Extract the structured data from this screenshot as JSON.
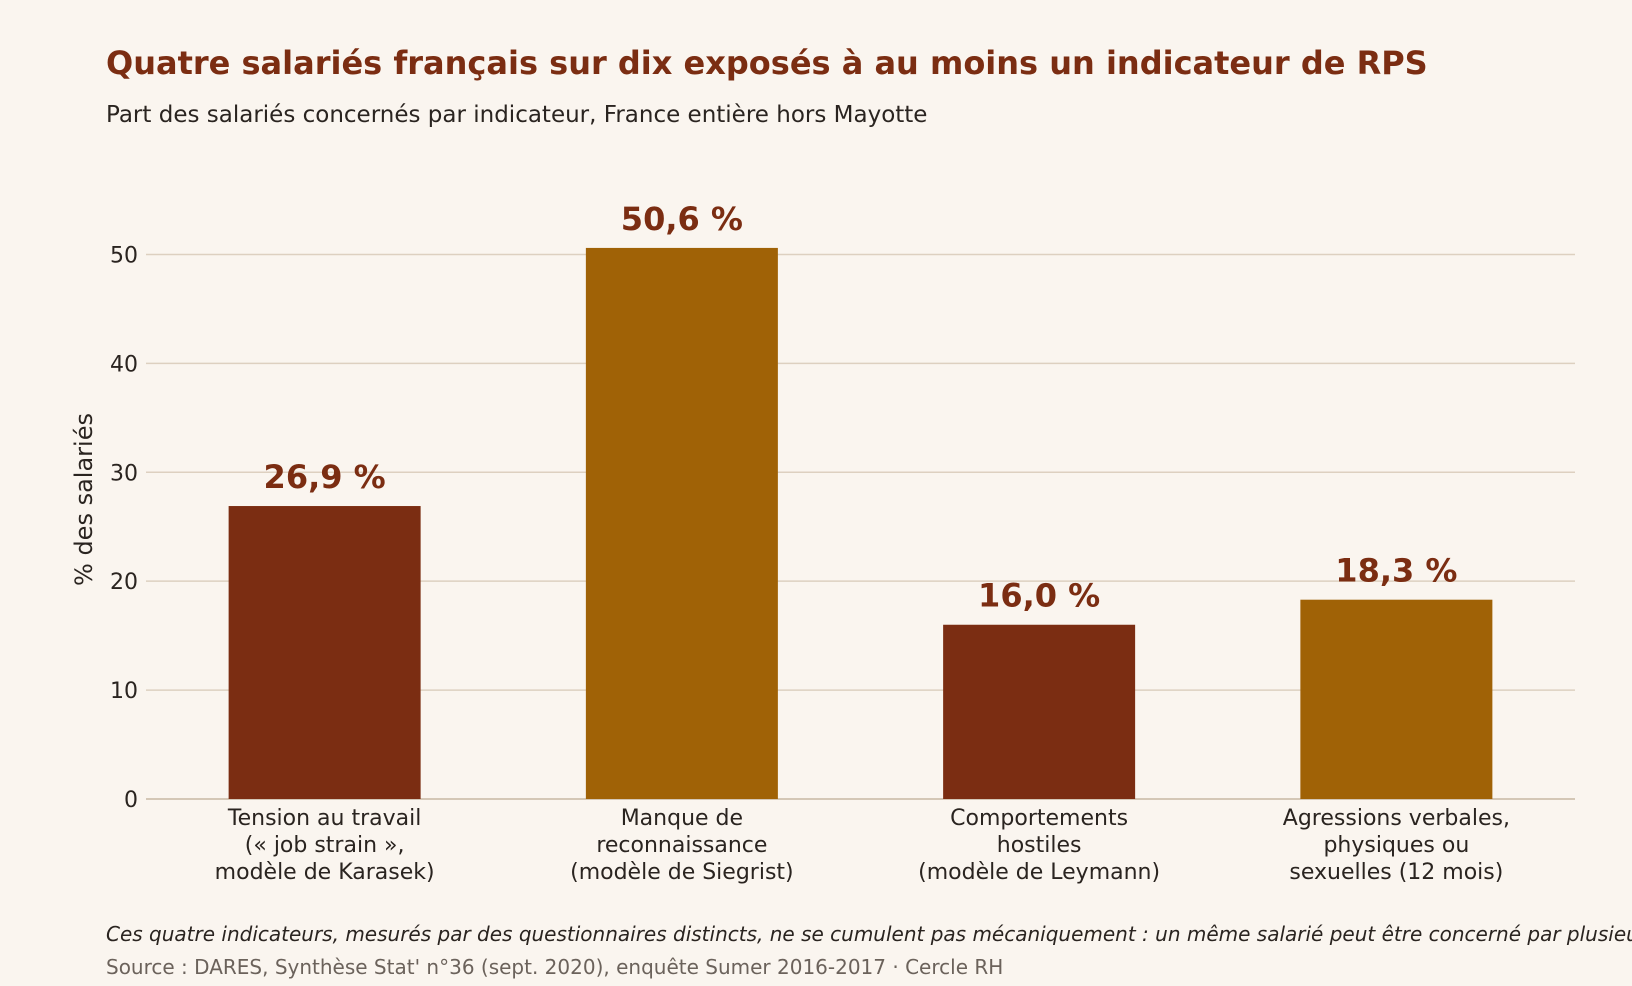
{
  "header": {
    "title": "Quatre salariés français sur dix exposés à au moins un indicateur de RPS",
    "subtitle": "Part des salariés concernés par indicateur, France entière hors Mayotte"
  },
  "chart_data": {
    "type": "bar",
    "ylabel": "% des salariés",
    "ylim": [
      0,
      55
    ],
    "yticks": [
      0,
      10,
      20,
      30,
      40,
      50
    ],
    "grid": true,
    "categories": [
      [
        "Tension au travail",
        "(« job strain »,",
        "modèle de Karasek)"
      ],
      [
        "Manque de",
        "reconnaissance",
        "(modèle de Siegrist)"
      ],
      [
        "Comportements",
        "hostiles",
        "(modèle de Leymann)"
      ],
      [
        "Agressions verbales,",
        "physiques ou",
        "sexuelles (12 mois)"
      ]
    ],
    "values": [
      26.9,
      50.6,
      16.0,
      18.3
    ],
    "data_labels": [
      "26,9 %",
      "50,6 %",
      "16,0 %",
      "18,3 %"
    ],
    "colors": [
      "#7b2d12",
      "#a06206",
      "#7b2d12",
      "#a06206"
    ],
    "label_color": "#7b2d12",
    "grid_color": "#ddd0c0"
  },
  "footer": {
    "note": "Ces quatre indicateurs, mesurés par des questionnaires distincts, ne se cumulent pas mécaniquement : un même salarié peut être concerné par plusieurs.",
    "source": "Source : DARES, Synthèse Stat' n°36 (sept. 2020), enquête Sumer 2016-2017 · Cercle RH"
  }
}
